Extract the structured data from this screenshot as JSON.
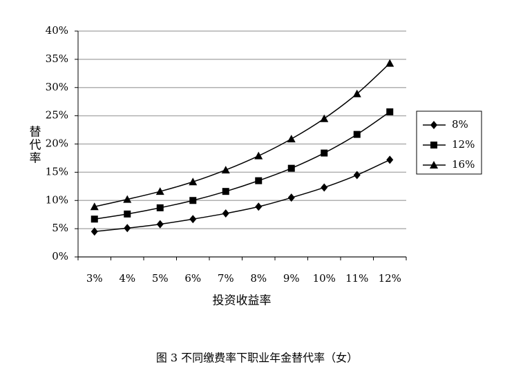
{
  "chart_data": {
    "type": "line",
    "x_label": "投资收益率",
    "y_label": "替代率",
    "caption": "图 3 不同缴费率下职业年金替代率（女）",
    "categories": [
      "3%",
      "4%",
      "5%",
      "6%",
      "7%",
      "8%",
      "9%",
      "10%",
      "11%",
      "12%"
    ],
    "series": [
      {
        "name": "8%",
        "color": "#000000",
        "marker": "diamond",
        "values": [
          4.5,
          5.1,
          5.8,
          6.7,
          7.7,
          8.9,
          10.5,
          12.3,
          14.5,
          17.2
        ]
      },
      {
        "name": "12%",
        "color": "#000000",
        "marker": "square",
        "values": [
          6.7,
          7.6,
          8.7,
          10.0,
          11.6,
          13.5,
          15.7,
          18.4,
          21.7,
          25.7
        ]
      },
      {
        "name": "16%",
        "color": "#000000",
        "marker": "triangle",
        "values": [
          8.9,
          10.2,
          11.6,
          13.3,
          15.4,
          17.9,
          20.9,
          24.5,
          28.9,
          34.3
        ]
      }
    ],
    "ylim": [
      0,
      40
    ],
    "yticks": [
      {
        "value": 0,
        "label": "0%"
      },
      {
        "value": 5,
        "label": "5%"
      },
      {
        "value": 10,
        "label": "10%"
      },
      {
        "value": 15,
        "label": "15%"
      },
      {
        "value": 20,
        "label": "20%"
      },
      {
        "value": 25,
        "label": "25%"
      },
      {
        "value": 30,
        "label": "30%"
      },
      {
        "value": 35,
        "label": "35%"
      },
      {
        "value": 40,
        "label": "40%"
      }
    ],
    "grid": true,
    "legend": "right"
  }
}
